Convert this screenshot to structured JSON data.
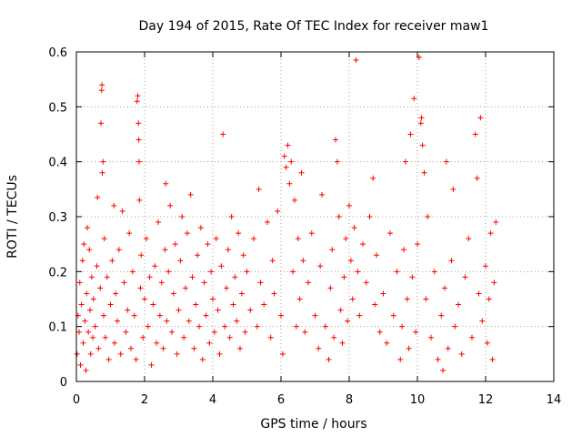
{
  "chart_data": {
    "type": "scatter",
    "title": "Day 194 of 2015, Rate Of TEC Index for receiver maw1",
    "xlabel": "GPS time / hours",
    "ylabel": "ROTI / TECUs",
    "xlim": [
      0,
      14
    ],
    "ylim": [
      0,
      0.6
    ],
    "x_ticks": [
      0,
      2,
      4,
      6,
      8,
      10,
      12,
      14
    ],
    "y_ticks": [
      0,
      0.1,
      0.2,
      0.3,
      0.4,
      0.5,
      0.6
    ],
    "x_tick_labels": [
      "0",
      "2",
      "4",
      "6",
      "8",
      "10",
      "12",
      "14"
    ],
    "y_tick_labels": [
      "0",
      "0.1",
      "0.2",
      "0.3",
      "0.4",
      "0.5",
      "0.6"
    ],
    "grid": true,
    "marker": "+",
    "marker_color": "#ff0000",
    "series": [
      {
        "name": "maw1",
        "points": [
          [
            0.02,
            0.05
          ],
          [
            0.05,
            0.12
          ],
          [
            0.08,
            0.09
          ],
          [
            0.1,
            0.18
          ],
          [
            0.12,
            0.03
          ],
          [
            0.15,
            0.14
          ],
          [
            0.18,
            0.22
          ],
          [
            0.2,
            0.07
          ],
          [
            0.22,
            0.25
          ],
          [
            0.25,
            0.11
          ],
          [
            0.28,
            0.02
          ],
          [
            0.3,
            0.16
          ],
          [
            0.32,
            0.28
          ],
          [
            0.35,
            0.09
          ],
          [
            0.38,
            0.24
          ],
          [
            0.4,
            0.13
          ],
          [
            0.42,
            0.05
          ],
          [
            0.45,
            0.19
          ],
          [
            0.48,
            0.08
          ],
          [
            0.5,
            0.15
          ],
          [
            0.55,
            0.1
          ],
          [
            0.6,
            0.21
          ],
          [
            0.62,
            0.335
          ],
          [
            0.65,
            0.06
          ],
          [
            0.7,
            0.17
          ],
          [
            0.72,
            0.47
          ],
          [
            0.74,
            0.53
          ],
          [
            0.75,
            0.54
          ],
          [
            0.76,
            0.38
          ],
          [
            0.78,
            0.4
          ],
          [
            0.8,
            0.12
          ],
          [
            0.82,
            0.26
          ],
          [
            0.85,
            0.08
          ],
          [
            0.9,
            0.19
          ],
          [
            0.95,
            0.04
          ],
          [
            1.0,
            0.14
          ],
          [
            1.05,
            0.22
          ],
          [
            1.1,
            0.32
          ],
          [
            1.12,
            0.07
          ],
          [
            1.15,
            0.16
          ],
          [
            1.2,
            0.11
          ],
          [
            1.25,
            0.24
          ],
          [
            1.3,
            0.05
          ],
          [
            1.35,
            0.31
          ],
          [
            1.4,
            0.18
          ],
          [
            1.45,
            0.09
          ],
          [
            1.5,
            0.13
          ],
          [
            1.55,
            0.27
          ],
          [
            1.6,
            0.06
          ],
          [
            1.65,
            0.2
          ],
          [
            1.7,
            0.12
          ],
          [
            1.75,
            0.04
          ],
          [
            1.78,
            0.51
          ],
          [
            1.8,
            0.52
          ],
          [
            1.82,
            0.47
          ],
          [
            1.83,
            0.44
          ],
          [
            1.84,
            0.4
          ],
          [
            1.85,
            0.33
          ],
          [
            1.88,
            0.17
          ],
          [
            1.9,
            0.23
          ],
          [
            1.95,
            0.08
          ],
          [
            2.0,
            0.15
          ],
          [
            2.05,
            0.26
          ],
          [
            2.1,
            0.1
          ],
          [
            2.15,
            0.19
          ],
          [
            2.2,
            0.03
          ],
          [
            2.25,
            0.14
          ],
          [
            2.3,
            0.21
          ],
          [
            2.35,
            0.07
          ],
          [
            2.4,
            0.29
          ],
          [
            2.45,
            0.12
          ],
          [
            2.5,
            0.18
          ],
          [
            2.55,
            0.06
          ],
          [
            2.6,
            0.24
          ],
          [
            2.62,
            0.36
          ],
          [
            2.65,
            0.11
          ],
          [
            2.7,
            0.2
          ],
          [
            2.75,
            0.32
          ],
          [
            2.8,
            0.09
          ],
          [
            2.85,
            0.16
          ],
          [
            2.9,
            0.25
          ],
          [
            2.95,
            0.05
          ],
          [
            3.0,
            0.13
          ],
          [
            3.05,
            0.22
          ],
          [
            3.1,
            0.3
          ],
          [
            3.15,
            0.08
          ],
          [
            3.2,
            0.17
          ],
          [
            3.25,
            0.27
          ],
          [
            3.3,
            0.11
          ],
          [
            3.35,
            0.34
          ],
          [
            3.4,
            0.19
          ],
          [
            3.45,
            0.06
          ],
          [
            3.5,
            0.14
          ],
          [
            3.55,
            0.23
          ],
          [
            3.6,
            0.1
          ],
          [
            3.65,
            0.28
          ],
          [
            3.7,
            0.04
          ],
          [
            3.75,
            0.18
          ],
          [
            3.8,
            0.12
          ],
          [
            3.85,
            0.25
          ],
          [
            3.9,
            0.07
          ],
          [
            3.95,
            0.2
          ],
          [
            4.0,
            0.15
          ],
          [
            4.05,
            0.09
          ],
          [
            4.1,
            0.26
          ],
          [
            4.15,
            0.13
          ],
          [
            4.2,
            0.05
          ],
          [
            4.25,
            0.21
          ],
          [
            4.3,
            0.45
          ],
          [
            4.35,
            0.1
          ],
          [
            4.4,
            0.17
          ],
          [
            4.45,
            0.24
          ],
          [
            4.5,
            0.08
          ],
          [
            4.55,
            0.3
          ],
          [
            4.6,
            0.14
          ],
          [
            4.65,
            0.19
          ],
          [
            4.7,
            0.11
          ],
          [
            4.75,
            0.27
          ],
          [
            4.8,
            0.06
          ],
          [
            4.85,
            0.16
          ],
          [
            4.9,
            0.23
          ],
          [
            4.95,
            0.09
          ],
          [
            5.0,
            0.2
          ],
          [
            5.1,
            0.13
          ],
          [
            5.2,
            0.26
          ],
          [
            5.3,
            0.1
          ],
          [
            5.35,
            0.35
          ],
          [
            5.4,
            0.18
          ],
          [
            5.5,
            0.14
          ],
          [
            5.6,
            0.29
          ],
          [
            5.7,
            0.08
          ],
          [
            5.75,
            0.22
          ],
          [
            5.8,
            0.16
          ],
          [
            5.9,
            0.31
          ],
          [
            6.0,
            0.12
          ],
          [
            6.05,
            0.05
          ],
          [
            6.1,
            0.41
          ],
          [
            6.15,
            0.39
          ],
          [
            6.2,
            0.43
          ],
          [
            6.25,
            0.36
          ],
          [
            6.3,
            0.4
          ],
          [
            6.35,
            0.2
          ],
          [
            6.4,
            0.33
          ],
          [
            6.45,
            0.1
          ],
          [
            6.5,
            0.26
          ],
          [
            6.55,
            0.15
          ],
          [
            6.6,
            0.38
          ],
          [
            6.65,
            0.22
          ],
          [
            6.7,
            0.09
          ],
          [
            6.8,
            0.18
          ],
          [
            6.9,
            0.27
          ],
          [
            7.0,
            0.12
          ],
          [
            7.1,
            0.06
          ],
          [
            7.15,
            0.21
          ],
          [
            7.2,
            0.34
          ],
          [
            7.3,
            0.1
          ],
          [
            7.4,
            0.04
          ],
          [
            7.45,
            0.17
          ],
          [
            7.5,
            0.24
          ],
          [
            7.55,
            0.08
          ],
          [
            7.6,
            0.44
          ],
          [
            7.65,
            0.4
          ],
          [
            7.7,
            0.3
          ],
          [
            7.75,
            0.13
          ],
          [
            7.8,
            0.07
          ],
          [
            7.85,
            0.19
          ],
          [
            7.9,
            0.26
          ],
          [
            7.95,
            0.11
          ],
          [
            8.0,
            0.32
          ],
          [
            8.05,
            0.22
          ],
          [
            8.1,
            0.15
          ],
          [
            8.15,
            0.28
          ],
          [
            8.2,
            0.585
          ],
          [
            8.25,
            0.2
          ],
          [
            8.3,
            0.12
          ],
          [
            8.4,
            0.25
          ],
          [
            8.5,
            0.18
          ],
          [
            8.6,
            0.3
          ],
          [
            8.7,
            0.37
          ],
          [
            8.75,
            0.14
          ],
          [
            8.8,
            0.23
          ],
          [
            8.9,
            0.09
          ],
          [
            9.0,
            0.16
          ],
          [
            9.1,
            0.07
          ],
          [
            9.2,
            0.27
          ],
          [
            9.3,
            0.12
          ],
          [
            9.4,
            0.2
          ],
          [
            9.5,
            0.04
          ],
          [
            9.55,
            0.1
          ],
          [
            9.6,
            0.24
          ],
          [
            9.65,
            0.4
          ],
          [
            9.7,
            0.15
          ],
          [
            9.75,
            0.06
          ],
          [
            9.8,
            0.45
          ],
          [
            9.85,
            0.19
          ],
          [
            9.9,
            0.515
          ],
          [
            9.95,
            0.09
          ],
          [
            10.0,
            0.25
          ],
          [
            10.05,
            0.59
          ],
          [
            10.1,
            0.47
          ],
          [
            10.12,
            0.48
          ],
          [
            10.15,
            0.43
          ],
          [
            10.2,
            0.38
          ],
          [
            10.25,
            0.15
          ],
          [
            10.3,
            0.3
          ],
          [
            10.4,
            0.08
          ],
          [
            10.5,
            0.2
          ],
          [
            10.6,
            0.04
          ],
          [
            10.7,
            0.12
          ],
          [
            10.75,
            0.02
          ],
          [
            10.8,
            0.17
          ],
          [
            10.85,
            0.4
          ],
          [
            10.9,
            0.06
          ],
          [
            11.0,
            0.22
          ],
          [
            11.05,
            0.35
          ],
          [
            11.1,
            0.1
          ],
          [
            11.2,
            0.14
          ],
          [
            11.3,
            0.05
          ],
          [
            11.4,
            0.19
          ],
          [
            11.5,
            0.26
          ],
          [
            11.6,
            0.08
          ],
          [
            11.7,
            0.45
          ],
          [
            11.75,
            0.37
          ],
          [
            11.8,
            0.16
          ],
          [
            11.85,
            0.48
          ],
          [
            11.9,
            0.11
          ],
          [
            12.0,
            0.21
          ],
          [
            12.05,
            0.07
          ],
          [
            12.1,
            0.15
          ],
          [
            12.15,
            0.27
          ],
          [
            12.2,
            0.04
          ],
          [
            12.25,
            0.18
          ],
          [
            12.3,
            0.29
          ]
        ]
      }
    ]
  }
}
